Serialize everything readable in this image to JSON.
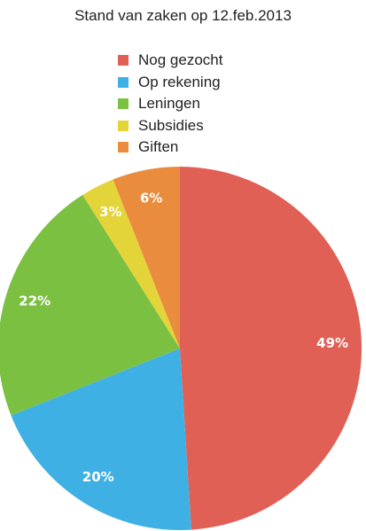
{
  "chart_data": {
    "type": "pie",
    "title": "Stand van zaken op 12.feb.2013",
    "legend_position": "top",
    "slices": [
      {
        "name": "Nog gezocht",
        "value": 49,
        "label": "49%",
        "color": "#e06055"
      },
      {
        "name": "Op rekening",
        "value": 20,
        "label": "20%",
        "color": "#3fb0e3"
      },
      {
        "name": "Leningen",
        "value": 22,
        "label": "22%",
        "color": "#7cc042"
      },
      {
        "name": "Subsidies",
        "value": 3,
        "label": "3%",
        "color": "#e3d43a"
      },
      {
        "name": "Giften",
        "value": 6,
        "label": "6%",
        "color": "#ea8c3e"
      }
    ]
  }
}
